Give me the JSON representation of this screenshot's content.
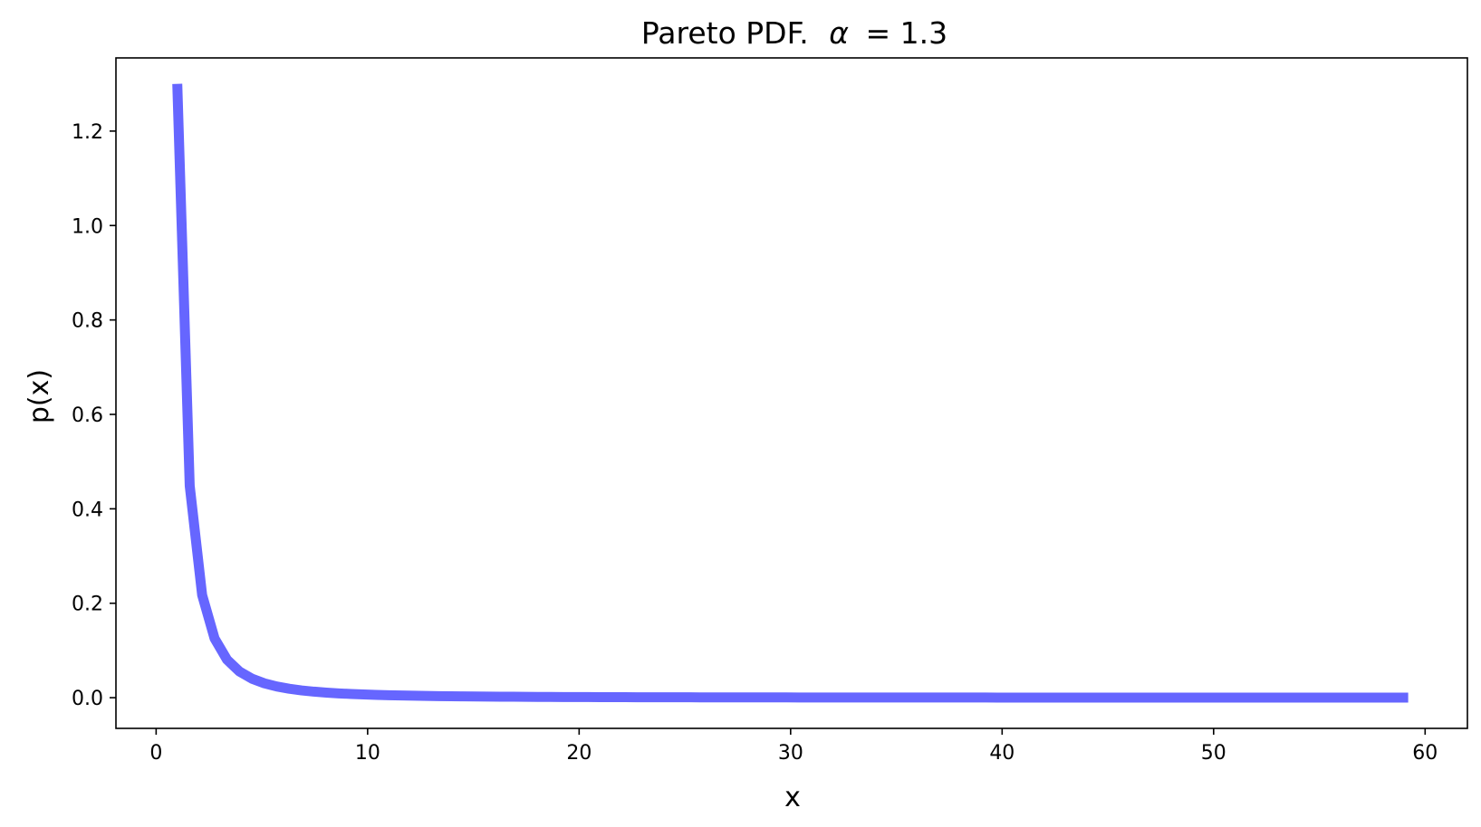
{
  "chart_data": {
    "type": "line",
    "title_prefix": "Pareto PDF.",
    "title_symbol": "α",
    "title_suffix": "= 1.3",
    "xlabel": "x",
    "ylabel": "p(x)",
    "xlim": [
      -1.9,
      62.0
    ],
    "ylim": [
      -0.065,
      1.355
    ],
    "xticks": [
      0,
      10,
      20,
      30,
      40,
      50,
      60
    ],
    "yticks": [
      0.0,
      0.2,
      0.4,
      0.6,
      0.8,
      1.0,
      1.2
    ],
    "ytick_labels": [
      "0.0",
      "0.2",
      "0.4",
      "0.6",
      "0.8",
      "1.0",
      "1.2"
    ],
    "grid": false,
    "legend": "none",
    "series": [
      {
        "color": "#6666ff",
        "alpha": 1.3,
        "x_range": [
          1.0,
          59.2
        ],
        "points": 100
      }
    ]
  }
}
